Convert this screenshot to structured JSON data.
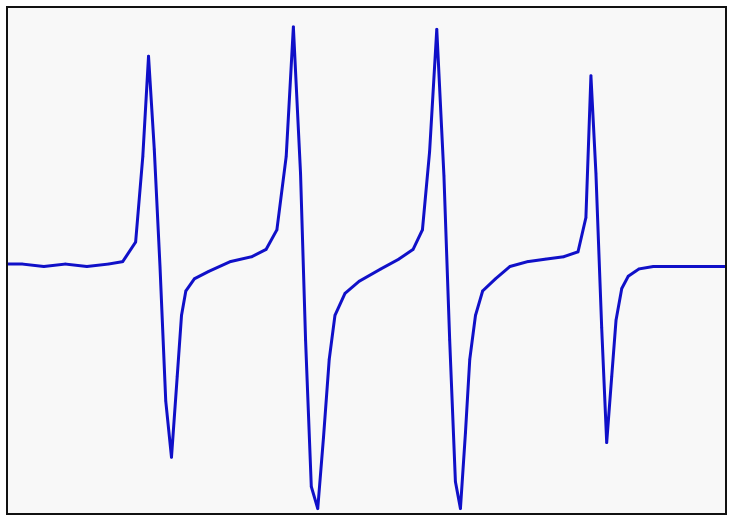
{
  "colors": {
    "background": "#ffffff",
    "plot_background": "#f8f8f8",
    "frame": "#111111",
    "trace": "#1010c8"
  },
  "chart_data": {
    "type": "line",
    "title": "",
    "xlabel": "",
    "ylabel": "",
    "axes_visible": false,
    "tick_labels": false,
    "grid": false,
    "legend": "none",
    "xlim": [
      0,
      100
    ],
    "ylim": [
      -1,
      1
    ],
    "series": [
      {
        "x": [
          0,
          2,
          5,
          8,
          11,
          14,
          16,
          17.8,
          18.8,
          19.6,
          20.4,
          21.2,
          22,
          22.8,
          23.6,
          24.2,
          24.8,
          26,
          28,
          31,
          34,
          36,
          37.5,
          38.8,
          39.8,
          40.8,
          41.5,
          42.3,
          43.2,
          44,
          44.8,
          45.6,
          47,
          49,
          52,
          54.5,
          56.5,
          57.8,
          58.8,
          59.8,
          60.8,
          61.6,
          62.4,
          63.1,
          63.8,
          64.4,
          65.2,
          66.2,
          68,
          70,
          72.5,
          75,
          77.5,
          79.5,
          80.6,
          81.3,
          82,
          82.8,
          83.5,
          84.2,
          84.8,
          85.6,
          86.5,
          88,
          90,
          93,
          96,
          100
        ],
        "y": [
          0.01,
          0.01,
          0.0,
          0.01,
          0.0,
          0.01,
          0.02,
          0.1,
          0.45,
          0.86,
          0.48,
          0.0,
          -0.55,
          -0.78,
          -0.45,
          -0.2,
          -0.1,
          -0.05,
          -0.02,
          0.02,
          0.04,
          0.07,
          0.15,
          0.45,
          0.98,
          0.38,
          -0.3,
          -0.9,
          -0.99,
          -0.7,
          -0.38,
          -0.2,
          -0.11,
          -0.06,
          -0.01,
          0.03,
          0.07,
          0.15,
          0.47,
          0.97,
          0.37,
          -0.3,
          -0.88,
          -0.99,
          -0.68,
          -0.38,
          -0.2,
          -0.1,
          -0.05,
          0.0,
          0.02,
          0.03,
          0.04,
          0.06,
          0.2,
          0.78,
          0.38,
          -0.25,
          -0.72,
          -0.45,
          -0.22,
          -0.09,
          -0.04,
          -0.01,
          0.0,
          0.0,
          0.0,
          0.0
        ]
      }
    ]
  }
}
